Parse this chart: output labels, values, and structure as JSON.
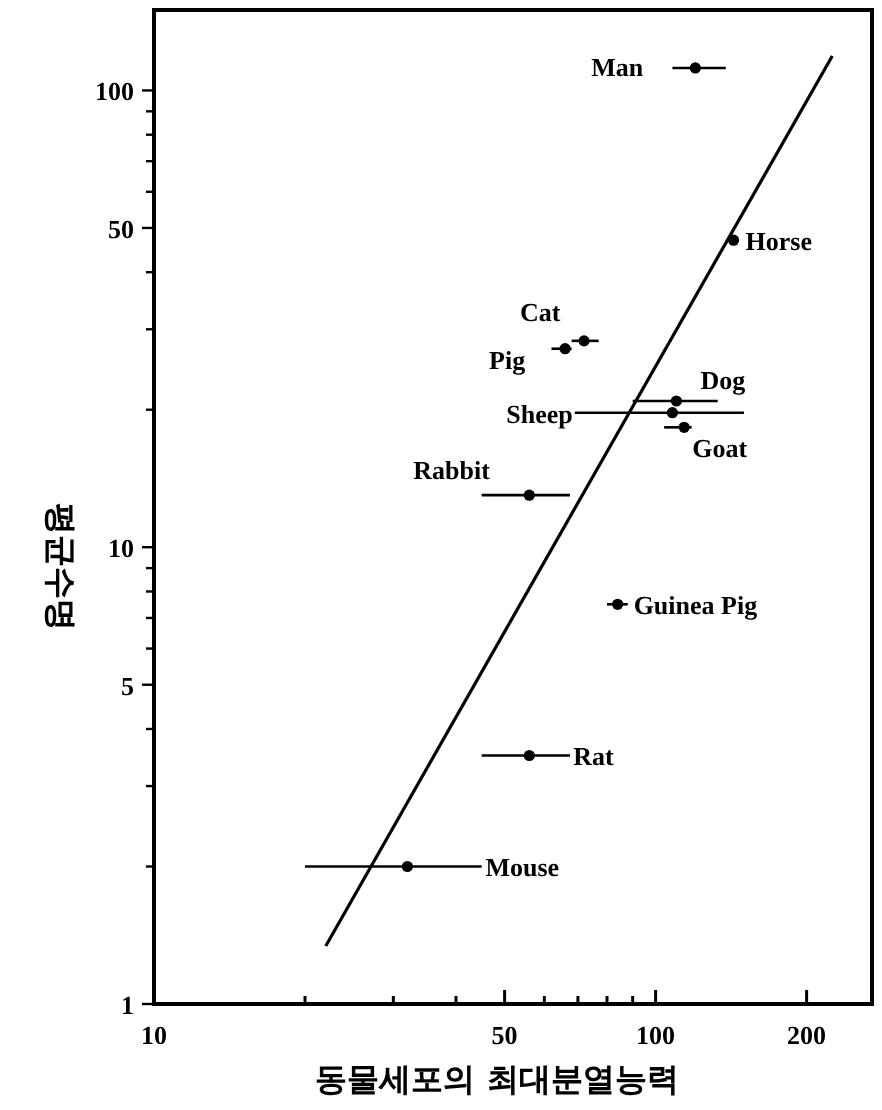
{
  "chart_data": {
    "type": "scatter",
    "xlabel": "동물세포의 최대분열능력",
    "ylabel": "평균수명",
    "log": "xy",
    "xlim": [
      10,
      270
    ],
    "ylim": [
      1,
      150
    ],
    "xticks": [
      10,
      {
        "value": 20,
        "label": null
      },
      {
        "value": 30,
        "label": null
      },
      {
        "value": 40,
        "label": null
      },
      50,
      {
        "value": 60,
        "label": null
      },
      {
        "value": 70,
        "label": null
      },
      {
        "value": 80,
        "label": null
      },
      {
        "value": 90,
        "label": null
      },
      100,
      200
    ],
    "yticks": [
      1,
      {
        "value": 2,
        "label": null
      },
      {
        "value": 3,
        "label": null
      },
      {
        "value": 4,
        "label": null
      },
      5,
      {
        "value": 6,
        "label": null
      },
      {
        "value": 7,
        "label": null
      },
      {
        "value": 8,
        "label": null
      },
      {
        "value": 9,
        "label": null
      },
      10,
      {
        "value": 20,
        "label": null
      },
      {
        "value": 30,
        "label": null
      },
      {
        "value": 40,
        "label": null
      },
      50,
      {
        "value": 60,
        "label": null
      },
      {
        "value": 70,
        "label": null
      },
      {
        "value": 80,
        "label": null
      },
      {
        "value": 90,
        "label": null
      },
      100
    ],
    "grid": false,
    "marker": "circle",
    "series": [
      {
        "color": "#000000",
        "x": [
          120,
          143,
          72,
          66,
          110,
          108,
          114,
          56,
          84,
          56,
          32
        ],
        "values": [
          112,
          47,
          28.3,
          27.2,
          20.9,
          19.7,
          18.3,
          13,
          7.5,
          3.5,
          2
        ],
        "xerrors": [
          [
            108,
            138
          ],
          null,
          [
            68,
            77
          ],
          [
            62,
            68
          ],
          [
            90,
            133
          ],
          [
            69,
            150
          ],
          [
            104,
            118
          ],
          [
            45,
            67.5
          ],
          [
            80,
            88
          ],
          [
            45,
            67.5
          ],
          [
            20,
            45
          ]
        ]
      },
      {
        "type": "line",
        "color": "#000000",
        "x": [
          22,
          225
        ],
        "values": [
          1.34,
          119
        ],
        "marker": "none",
        "line_style": "solid"
      }
    ],
    "annotations": [
      {
        "text": "Man",
        "x": 120,
        "y": 112
      },
      {
        "text": "Horse",
        "x": 143,
        "y": 47
      },
      {
        "text": "Cat",
        "x": 72,
        "y": 28.3
      },
      {
        "text": "Pig",
        "x": 66,
        "y": 27.2
      },
      {
        "text": "Dog",
        "x": 110,
        "y": 20.9
      },
      {
        "text": "Sheep",
        "x": 69,
        "y": 19.7
      },
      {
        "text": "Goat",
        "x": 114,
        "y": 18.3
      },
      {
        "text": "Rabbit",
        "x": 56,
        "y": 13
      },
      {
        "text": "Guinea Pig",
        "x": 84,
        "y": 7.5
      },
      {
        "text": "Rat",
        "x": 56,
        "y": 3.5
      },
      {
        "text": "Mouse",
        "x": 32,
        "y": 2
      }
    ]
  }
}
